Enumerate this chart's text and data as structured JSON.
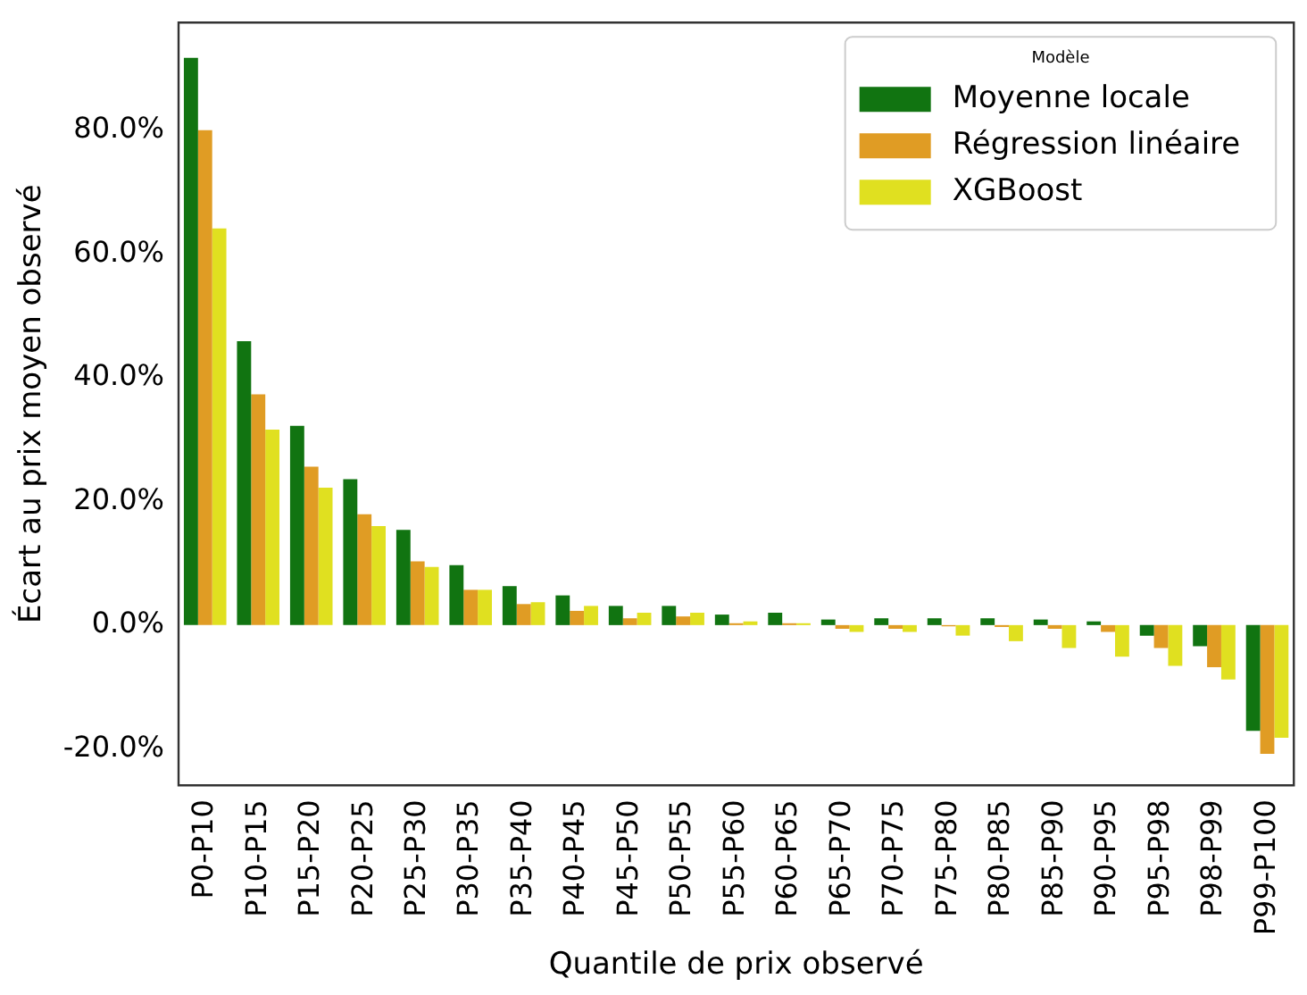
{
  "chart_data": {
    "type": "bar",
    "xlabel": "Quantile de prix observé",
    "ylabel": "Écart au prix moyen observé",
    "legend_title": "Modèle",
    "legend": "top right",
    "grid": false,
    "categories": [
      "P0-P10",
      "P10-P15",
      "P15-P20",
      "P20-P25",
      "P25-P30",
      "P30-P35",
      "P35-P40",
      "P40-P45",
      "P45-P50",
      "P50-P55",
      "P55-P60",
      "P60-P65",
      "P65-P70",
      "P70-P75",
      "P75-P80",
      "P80-P85",
      "P85-P90",
      "P90-P95",
      "P95-P98",
      "P98-P99",
      "P99-P100"
    ],
    "ylim": [
      -25.9,
      97.4
    ],
    "yticks": [
      {
        "value": -20,
        "label": "-20.0%"
      },
      {
        "value": 0,
        "label": "0.0%"
      },
      {
        "value": 20,
        "label": "20.0%"
      },
      {
        "value": 40,
        "label": "40.0%"
      },
      {
        "value": 60,
        "label": "60.0%"
      },
      {
        "value": 80,
        "label": "80.0%"
      }
    ],
    "series": [
      {
        "name": "Moyenne locale",
        "color": "#117411",
        "values": [
          91.7,
          45.9,
          32.2,
          23.6,
          15.4,
          9.7,
          6.3,
          4.8,
          3.1,
          3.1,
          1.7,
          2.0,
          0.9,
          1.1,
          1.1,
          1.1,
          0.9,
          0.6,
          -1.7,
          -3.4,
          -17.1
        ]
      },
      {
        "name": "Régression linéaire",
        "color": "#e09c24",
        "values": [
          80.0,
          37.3,
          25.6,
          17.9,
          10.3,
          5.7,
          3.4,
          2.3,
          1.1,
          1.4,
          0.3,
          0.3,
          -0.6,
          -0.6,
          -0.2,
          -0.3,
          -0.6,
          -1.1,
          -3.7,
          -6.8,
          -20.8
        ]
      },
      {
        "name": "XGBoost",
        "color": "#e0e020",
        "values": [
          64.1,
          31.6,
          22.2,
          16.0,
          9.4,
          5.7,
          3.7,
          3.1,
          2.0,
          2.0,
          0.6,
          0.3,
          -1.1,
          -1.1,
          -1.7,
          -2.6,
          -3.7,
          -5.1,
          -6.6,
          -8.8,
          -18.2
        ]
      }
    ]
  }
}
